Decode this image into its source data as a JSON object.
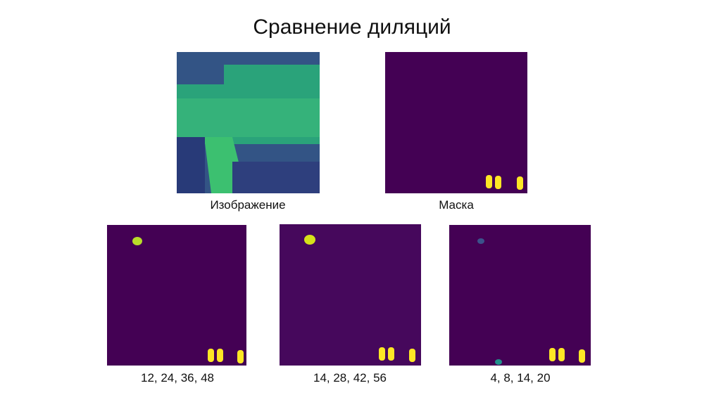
{
  "title": "Сравнение диляций",
  "panels": [
    {
      "caption": "Изображение"
    },
    {
      "caption": "Маска"
    },
    {
      "caption": "12, 24, 36, 48"
    },
    {
      "caption": "14, 28, 42, 56"
    },
    {
      "caption": "4, 8, 14, 20"
    }
  ]
}
